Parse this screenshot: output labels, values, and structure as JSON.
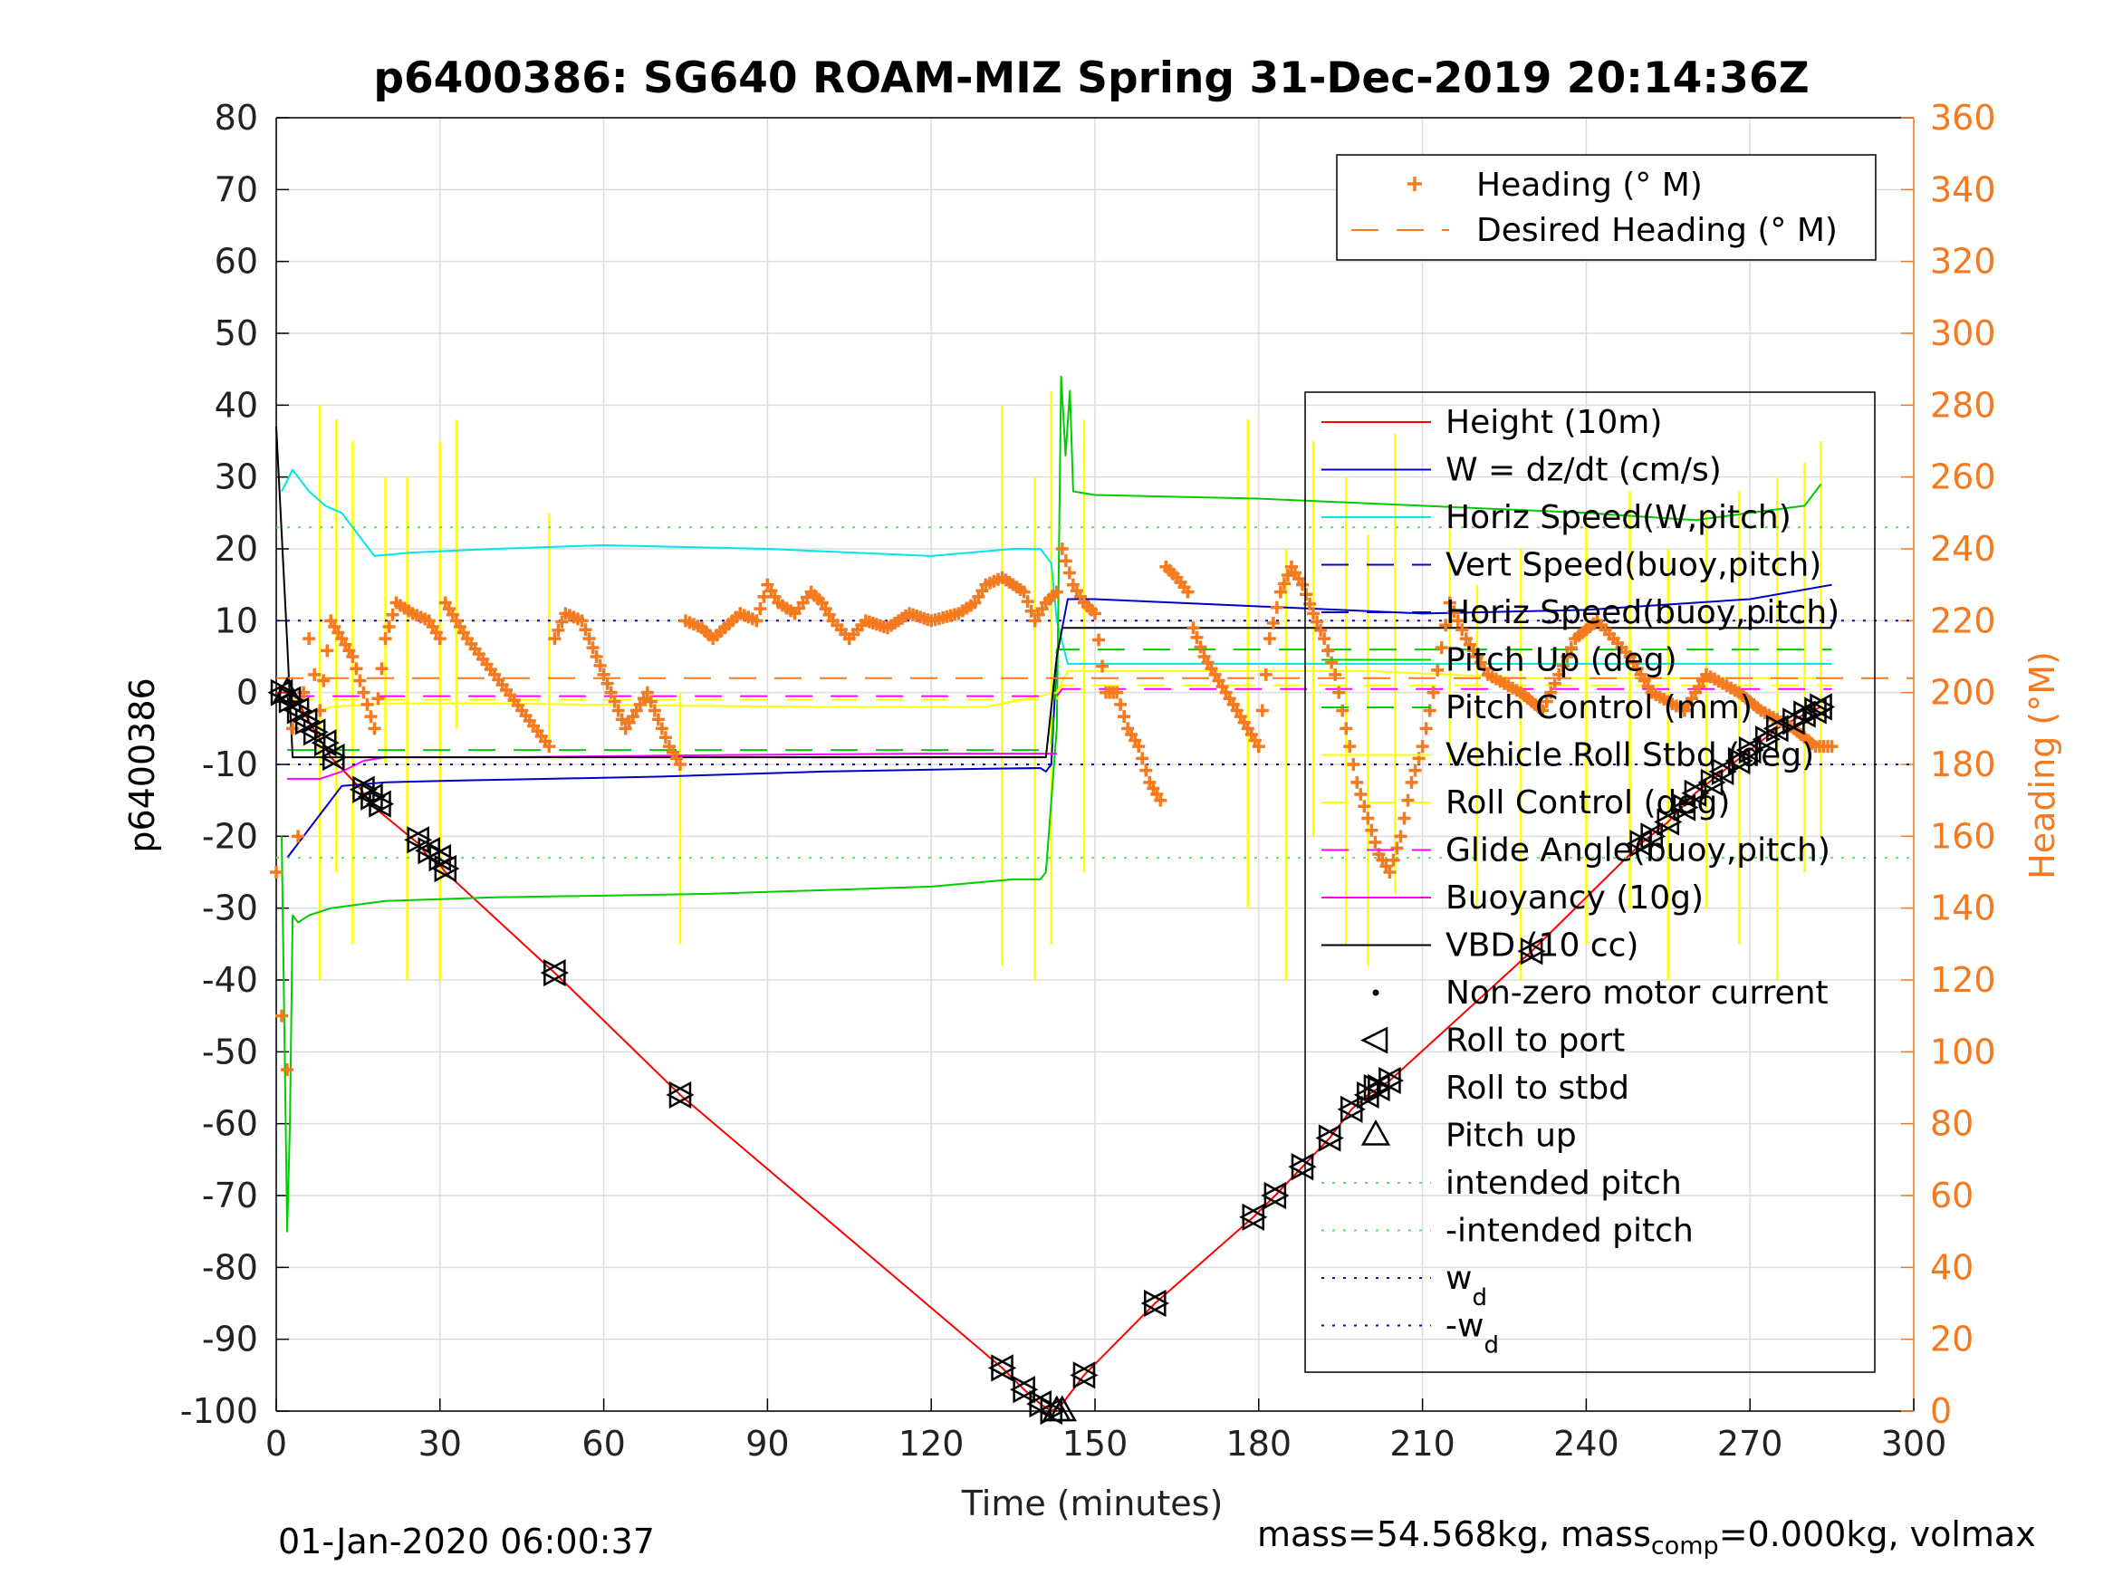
{
  "chart_data": {
    "type": "line",
    "title": "p6400386: SG640 ROAM-MIZ Spring 31-Dec-2019 20:14:36Z",
    "xlabel": "Time (minutes)",
    "ylabel_left": "p6400386",
    "ylabel_right": "Heading (°M)",
    "xlim": [
      0,
      300
    ],
    "xticks": [
      0,
      30,
      60,
      90,
      120,
      150,
      180,
      210,
      240,
      270,
      300
    ],
    "ylim_left": [
      -100,
      80
    ],
    "yticks_left": [
      80,
      70,
      60,
      50,
      40,
      30,
      20,
      10,
      0,
      -10,
      -20,
      -30,
      -40,
      -50,
      -60,
      -70,
      -80,
      -90,
      -100
    ],
    "ylim_right": [
      0,
      360
    ],
    "yticks_right": [
      360,
      340,
      320,
      300,
      280,
      260,
      240,
      220,
      200,
      180,
      160,
      140,
      120,
      100,
      80,
      60,
      40,
      20,
      0
    ],
    "grid": true,
    "legend_heading": {
      "placement": "top-right",
      "entries": [
        "Heading (° M)",
        "Desired Heading (° M)"
      ]
    },
    "legend_main": {
      "placement": "right",
      "entries": [
        "Height (10m)",
        "W = dz/dt (cm/s)",
        "Horiz Speed(W,pitch)",
        "Vert Speed(buoy,pitch)",
        "Horiz Speed(buoy,pitch)",
        "Pitch Up (deg)",
        "Pitch Control (mm)",
        "Vehicle Roll Stbd (deg)",
        "Roll Control (deg)",
        "Glide Angle(buoy,pitch)",
        "Buoyancy (10g)",
        "VBD (10 cc)",
        "Non-zero motor current",
        "Roll to port",
        "Roll to stbd",
        "Pitch up",
        "intended pitch",
        "-intended pitch",
        "w_d",
        "-w_d"
      ]
    },
    "colors": {
      "height": "#ff0000",
      "w": "#0000cc",
      "horiz_speed": "#00e5e5",
      "pitch_up": "#00cc00",
      "pitch_control": "#33ff33",
      "roll": "#ffff00",
      "glide": "#ff00ff",
      "vbd": "#000000",
      "intended": "#33ff33",
      "wd": "#0000ff",
      "heading": "#f47a20"
    },
    "series": [
      {
        "name": "Height (10m)",
        "x": [
          0,
          3,
          6,
          10,
          15,
          17,
          18,
          26,
          28,
          30,
          31,
          51,
          74,
          133,
          137,
          140,
          142,
          144,
          148,
          161,
          179,
          183,
          188,
          193,
          197,
          200,
          202,
          204,
          230,
          250,
          255,
          260,
          265,
          270,
          275,
          280,
          283
        ],
        "y": [
          0,
          0,
          -4,
          -9,
          -13,
          -15,
          -16,
          -21,
          -23,
          -24,
          -25,
          -39,
          -56,
          -94,
          -97,
          -99,
          -100,
          -99,
          -95,
          -85,
          -73,
          -70,
          -66,
          -62,
          -58,
          -56,
          -55,
          -54,
          -36,
          -21,
          -18,
          -14,
          -11,
          -8,
          -5,
          -3,
          -2
        ]
      },
      {
        "name": "W = dz/dt (cm/s)",
        "x": [
          2,
          5,
          8,
          10,
          12,
          20,
          30,
          50,
          70,
          100,
          130,
          140,
          141,
          142,
          143,
          145,
          150,
          165,
          180,
          195,
          210,
          240,
          270,
          285
        ],
        "y": [
          -23,
          -20,
          -17,
          -15,
          -13,
          -12.5,
          -12.3,
          -12,
          -11.7,
          -11,
          -10.6,
          -10.5,
          -11,
          -10,
          5,
          13,
          13,
          12.5,
          12,
          11.5,
          11,
          11.5,
          13,
          15
        ]
      },
      {
        "name": "Horiz Speed(W,pitch)",
        "x": [
          1,
          3,
          6,
          9,
          12,
          14,
          16,
          18,
          25,
          40,
          60,
          90,
          120,
          135,
          140,
          142,
          143,
          145,
          150,
          180,
          220,
          285
        ],
        "y": [
          28,
          31,
          28,
          26,
          25,
          23,
          21,
          19,
          19.5,
          20,
          20.5,
          20,
          19,
          20,
          20,
          18,
          10,
          4,
          4,
          4,
          4,
          4
        ]
      },
      {
        "name": "Pitch Up (deg)",
        "x": [
          1,
          2,
          2.5,
          3,
          4,
          6,
          10,
          20,
          40,
          80,
          120,
          135,
          140,
          141,
          143,
          143.8,
          144.6,
          145.4,
          146,
          150,
          180,
          210,
          240,
          260,
          270,
          280,
          283
        ],
        "y": [
          -20,
          -75,
          -60,
          -31,
          -32,
          -31,
          -30,
          -29,
          -28.5,
          -28,
          -27,
          -26,
          -26,
          -25,
          -5,
          44,
          33,
          42,
          28,
          27.5,
          27,
          26,
          25,
          24,
          25,
          26,
          29
        ]
      },
      {
        "name": "Pitch Control (mm)",
        "x": [
          2,
          10,
          60,
          142,
          143,
          150,
          285
        ],
        "y": [
          -8,
          -8,
          -8,
          -8,
          6,
          6,
          6
        ]
      },
      {
        "name": "Vehicle Roll Stbd (deg)",
        "x": [
          2,
          10,
          20,
          40,
          70,
          100,
          130,
          143,
          145,
          170,
          200,
          230,
          260,
          285
        ],
        "y": [
          -4,
          -2,
          -1.5,
          -1.5,
          -1.8,
          -2,
          -2,
          0,
          3,
          3,
          3,
          2,
          2,
          2
        ]
      },
      {
        "name": "Roll Control (deg)",
        "x": [
          2,
          143,
          144,
          285
        ],
        "y": [
          -1,
          -1,
          1,
          1
        ]
      },
      {
        "name": "Glide Angle(buoy,pitch)",
        "x": [
          2,
          143,
          144,
          285
        ],
        "y": [
          -0.5,
          -0.5,
          0.5,
          0.5
        ]
      },
      {
        "name": "Buoyancy (10g)",
        "x": [
          2,
          8,
          12,
          16,
          20,
          40,
          80,
          120,
          143
        ],
        "y": [
          -12,
          -12,
          -11,
          -9.5,
          -9,
          -9,
          -8.7,
          -8.5,
          -8.5
        ]
      },
      {
        "name": "VBD (10 cc)",
        "x": [
          0,
          2,
          3,
          6,
          12,
          60,
          141,
          143,
          144,
          285
        ],
        "y": [
          37,
          7,
          -9,
          -9,
          -9,
          -9,
          -9,
          5,
          9,
          9
        ]
      },
      {
        "name": "intended pitch",
        "x": [
          0,
          300
        ],
        "y": [
          23,
          23
        ]
      },
      {
        "name": "-intended pitch",
        "x": [
          0,
          300
        ],
        "y": [
          -23,
          -23
        ]
      },
      {
        "name": "w_d",
        "x": [
          0,
          300
        ],
        "y": [
          10,
          10
        ]
      },
      {
        "name": "-w_d",
        "x": [
          0,
          300
        ],
        "y": [
          -10,
          -10
        ]
      },
      {
        "name": "Desired Heading (° M)",
        "axis": "right",
        "x": [
          0,
          300
        ],
        "y": [
          204,
          204
        ]
      },
      {
        "name": "Heading (° M)",
        "axis": "right",
        "x": [
          0,
          1,
          2,
          3,
          4,
          5,
          6,
          7,
          8,
          10,
          12,
          14,
          16,
          18,
          20,
          22,
          25,
          28,
          30,
          31,
          35,
          40,
          45,
          50,
          51,
          53,
          56,
          60,
          64,
          68,
          72,
          74,
          75,
          78,
          80,
          85,
          88,
          90,
          92,
          95,
          98,
          100,
          102,
          105,
          108,
          112,
          116,
          120,
          125,
          128,
          130,
          133,
          137,
          139,
          141,
          143,
          144,
          146,
          148,
          150,
          152,
          154,
          156,
          158,
          160,
          162,
          163,
          165,
          167,
          168,
          170,
          172,
          174,
          176,
          178,
          180,
          182,
          184,
          186,
          188,
          190,
          192,
          194,
          196,
          198,
          200,
          202,
          204,
          206,
          208,
          210,
          212,
          215,
          218,
          222,
          228,
          232,
          238,
          242,
          248,
          252,
          258,
          262,
          268,
          272,
          278,
          282,
          285
        ],
        "y": [
          150,
          110,
          95,
          190,
          160,
          200,
          215,
          205,
          195,
          220,
          215,
          210,
          200,
          190,
          215,
          225,
          222,
          220,
          215,
          225,
          215,
          205,
          195,
          185,
          215,
          222,
          220,
          205,
          190,
          200,
          185,
          180,
          220,
          218,
          215,
          222,
          220,
          230,
          225,
          222,
          228,
          225,
          220,
          215,
          220,
          218,
          222,
          220,
          222,
          225,
          230,
          232,
          228,
          220,
          225,
          228,
          240,
          230,
          225,
          222,
          200,
          200,
          190,
          185,
          175,
          170,
          235,
          232,
          228,
          218,
          210,
          205,
          200,
          195,
          190,
          185,
          215,
          228,
          235,
          230,
          222,
          215,
          205,
          190,
          175,
          165,
          155,
          150,
          160,
          175,
          185,
          200,
          225,
          215,
          205,
          200,
          195,
          215,
          220,
          210,
          200,
          195,
          205,
          200,
          195,
          190,
          185,
          185
        ]
      }
    ],
    "markers": {
      "roll_to_port": {
        "name": "Roll to port",
        "x": [
          1,
          2.5,
          4,
          5.5,
          7,
          9,
          10.5,
          16,
          17.5,
          19,
          26,
          28,
          30,
          31,
          51,
          74,
          133,
          137,
          140,
          142,
          148,
          161,
          179,
          183,
          188,
          193,
          197,
          200,
          202,
          204,
          230,
          250,
          252,
          255,
          258,
          260,
          263,
          265,
          268,
          270,
          273,
          275,
          278,
          280,
          282,
          283
        ],
        "y": [
          0,
          -1,
          -2.5,
          -4,
          -5.5,
          -7,
          -9,
          -13.5,
          -14.5,
          -15.5,
          -20.5,
          -22,
          -23,
          -24.5,
          -39,
          -56,
          -94,
          -97,
          -99,
          -100,
          -95,
          -85,
          -73,
          -70,
          -66,
          -62,
          -58,
          -56,
          -55,
          -54,
          -36,
          -21,
          -20,
          -18,
          -16,
          -14,
          -12.5,
          -11,
          -9.5,
          -8,
          -6.5,
          -5,
          -4,
          -3,
          -2.5,
          -2
        ]
      },
      "roll_to_stbd": {
        "name": "Roll to stbd",
        "x": [
          1,
          2.5,
          4,
          5.5,
          7,
          9,
          10.5,
          16,
          17.5,
          19,
          26,
          28,
          30,
          31,
          51,
          74,
          133,
          137,
          140,
          142,
          148,
          161,
          179,
          183,
          188,
          193,
          197,
          200,
          202,
          204,
          230,
          250,
          252,
          255,
          258,
          260,
          263,
          265,
          268,
          270,
          273,
          275,
          278,
          280,
          282,
          283
        ],
        "y": [
          0,
          -1,
          -2.5,
          -4,
          -5.5,
          -7,
          -9,
          -13.5,
          -14.5,
          -15.5,
          -20.5,
          -22,
          -23,
          -24.5,
          -39,
          -56,
          -94,
          -97,
          -99,
          -100,
          -95,
          -85,
          -73,
          -70,
          -66,
          -62,
          -58,
          -56,
          -55,
          -54,
          -36,
          -21,
          -20,
          -18,
          -16,
          -14,
          -12.5,
          -11,
          -9.5,
          -8,
          -6.5,
          -5,
          -4,
          -3,
          -2.5,
          -2
        ]
      },
      "pitch_up": {
        "name": "Pitch up",
        "x": [
          2,
          143,
          144
        ],
        "y": [
          0,
          -100,
          -100
        ]
      }
    }
  },
  "footer": {
    "date": "01-Jan-2020 06:00:37",
    "mass_prefix": "mass=54.568kg, mass",
    "mass_sub": "comp",
    "mass_suffix": "=0.000kg, volmax"
  }
}
